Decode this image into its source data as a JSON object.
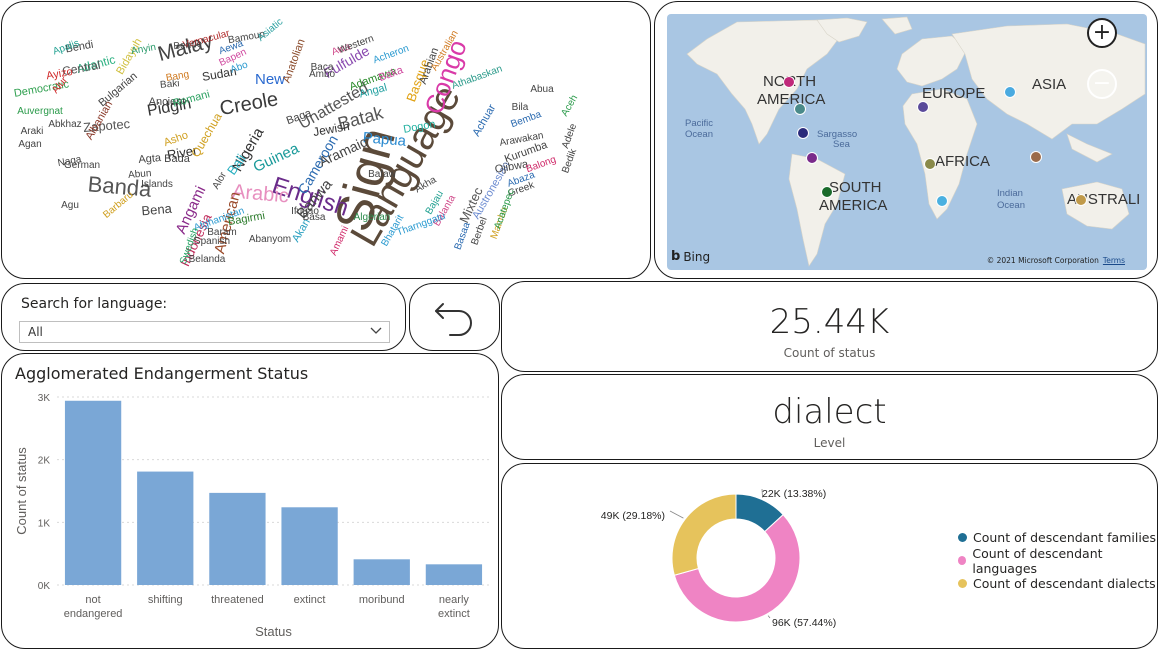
{
  "wordcloud": {
    "words": [
      {
        "text": "Sign",
        "color": "#5b4a3a"
      },
      {
        "text": "Language",
        "color": "#5b4a3a"
      },
      {
        "text": "English",
        "color": "#6a2b8a"
      },
      {
        "text": "Arabic",
        "color": "#e78fbf"
      },
      {
        "text": "Creole",
        "color": "#3a3a3a"
      },
      {
        "text": "Malay",
        "color": "#444444"
      },
      {
        "text": "Banda",
        "color": "#555555"
      },
      {
        "text": "Congo",
        "color": "#d93aa8"
      },
      {
        "text": "Batak",
        "color": "#555555"
      },
      {
        "text": "Guinea",
        "color": "#1a9a9a"
      },
      {
        "text": "Papua",
        "color": "#2a8ad0"
      },
      {
        "text": "Pidgin",
        "color": "#333333"
      },
      {
        "text": "Unattested",
        "color": "#555555"
      },
      {
        "text": "Nigeria",
        "color": "#333333"
      },
      {
        "text": "Cameroon",
        "color": "#2a6ab0"
      },
      {
        "text": "Aramaic",
        "color": "#444444"
      },
      {
        "text": "Basque",
        "color": "#e0a010"
      },
      {
        "text": "Atlantic",
        "color": "#2ab080"
      },
      {
        "text": "Banwa",
        "color": "#444444"
      },
      {
        "text": "Mixtec",
        "color": "#555555"
      },
      {
        "text": "Fulfulde",
        "color": "#8a4ab0"
      },
      {
        "text": "New",
        "color": "#2a6ad0"
      },
      {
        "text": "Bali",
        "color": "#2ab0c0"
      },
      {
        "text": "Angami",
        "color": "#8a2a8a"
      },
      {
        "text": "American",
        "color": "#9a4a2a"
      },
      {
        "text": "Indonesia",
        "color": "#c02a5a"
      },
      {
        "text": "Austronesian",
        "color": "#6a8ad0"
      },
      {
        "text": "Jewish",
        "color": "#333333"
      },
      {
        "text": "Zapotec",
        "color": "#555555"
      },
      {
        "text": "River",
        "color": "#333333"
      },
      {
        "text": "Bena",
        "color": "#444444"
      },
      {
        "text": "Central",
        "color": "#555555"
      },
      {
        "text": "Democratic",
        "color": "#30a050"
      },
      {
        "text": "Ancient",
        "color": "#444444"
      },
      {
        "text": "Romani",
        "color": "#2aa060"
      },
      {
        "text": "Quechua",
        "color": "#d0a020"
      },
      {
        "text": "Albanian",
        "color": "#8a3a2a"
      },
      {
        "text": "Bulgarian",
        "color": "#444444"
      },
      {
        "text": "Sudan",
        "color": "#333333"
      },
      {
        "text": "Anatolian",
        "color": "#8a4a2a"
      },
      {
        "text": "Athabaskan",
        "color": "#2a9a8a"
      },
      {
        "text": "Dogon",
        "color": "#20b0a0"
      },
      {
        "text": "Ojibwa",
        "color": "#444444"
      },
      {
        "text": "Kurumba",
        "color": "#444444"
      },
      {
        "text": "Arawakan",
        "color": "#444444"
      },
      {
        "text": "Vernacular",
        "color": "#b02a2a"
      },
      {
        "text": "Bendi",
        "color": "#444444"
      },
      {
        "text": "Benue",
        "color": "#444444"
      },
      {
        "text": "Bidayuh",
        "color": "#d0c040"
      },
      {
        "text": "Adamawa",
        "color": "#2a8a2a"
      },
      {
        "text": "Bamoun",
        "color": "#444444"
      },
      {
        "text": "Afghanistan",
        "color": "#2a9ad0"
      },
      {
        "text": "Swedish",
        "color": "#20a060"
      },
      {
        "text": "Belanda",
        "color": "#444444"
      },
      {
        "text": "Spanish",
        "color": "#444444"
      },
      {
        "text": "Bagirmi",
        "color": "#2a7a2a"
      },
      {
        "text": "Ifugao",
        "color": "#444444"
      },
      {
        "text": "Algerian",
        "color": "#2a8a4a"
      },
      {
        "text": "Akan",
        "color": "#2aa0c0"
      },
      {
        "text": "Abanyom",
        "color": "#444444"
      },
      {
        "text": "Baram",
        "color": "#444444"
      },
      {
        "text": "Bajau",
        "color": "#20a090"
      },
      {
        "text": "Greek",
        "color": "#444444"
      },
      {
        "text": "Akha",
        "color": "#444444"
      },
      {
        "text": "Abaza",
        "color": "#2a6ab0"
      },
      {
        "text": "Balong",
        "color": "#d02a6a"
      },
      {
        "text": "Bemba",
        "color": "#2a6ab0"
      },
      {
        "text": "Abua",
        "color": "#444444"
      },
      {
        "text": "Bila",
        "color": "#444444"
      },
      {
        "text": "Baka",
        "color": "#d04aa0"
      },
      {
        "text": "Baga",
        "color": "#444444"
      },
      {
        "text": "Awa",
        "color": "#d04a8a"
      },
      {
        "text": "Ambo",
        "color": "#444444"
      },
      {
        "text": "Baca",
        "color": "#444444"
      },
      {
        "text": "Angal",
        "color": "#20a0a0"
      },
      {
        "text": "Agta",
        "color": "#444444"
      },
      {
        "text": "Abun",
        "color": "#444444"
      },
      {
        "text": "Asho",
        "color": "#d0a020"
      },
      {
        "text": "Bada",
        "color": "#444444"
      },
      {
        "text": "German",
        "color": "#444444"
      },
      {
        "text": "Naga",
        "color": "#444444"
      },
      {
        "text": "Agu",
        "color": "#444444"
      },
      {
        "text": "Alor",
        "color": "#444444"
      },
      {
        "text": "Barbaru",
        "color": "#d0a020"
      },
      {
        "text": "Islands",
        "color": "#444444"
      },
      {
        "text": "Ayizo",
        "color": "#d02a2a"
      },
      {
        "text": "Auvergnat",
        "color": "#2a9a4a"
      },
      {
        "text": "Araki",
        "color": "#444444"
      },
      {
        "text": "Agan",
        "color": "#444444"
      },
      {
        "text": "Abkhaz",
        "color": "#444444"
      },
      {
        "text": "Anyin",
        "color": "#2a9a6a"
      },
      {
        "text": "Bang",
        "color": "#d07a20"
      },
      {
        "text": "Baki",
        "color": "#444444"
      },
      {
        "text": "Abo",
        "color": "#2a9ad0"
      },
      {
        "text": "Bapen",
        "color": "#d04aa0"
      },
      {
        "text": "Aewa",
        "color": "#2a6ab0"
      },
      {
        "text": "Asiatic",
        "color": "#2aa0a0"
      },
      {
        "text": "Western",
        "color": "#444444"
      },
      {
        "text": "Acheron",
        "color": "#2a9ad0"
      },
      {
        "text": "Arabian",
        "color": "#444444"
      },
      {
        "text": "Australian",
        "color": "#d07a20"
      },
      {
        "text": "Apalis",
        "color": "#20a090"
      },
      {
        "text": "Alur",
        "color": "#d02a2a"
      },
      {
        "text": "Adele",
        "color": "#444444"
      },
      {
        "text": "Bedik",
        "color": "#444444"
      },
      {
        "text": "Aceh",
        "color": "#2a9a4a"
      },
      {
        "text": "Achuar",
        "color": "#2a6ab0"
      },
      {
        "text": "Balanta",
        "color": "#d04a8a"
      },
      {
        "text": "Mambo",
        "color": "#d0a020"
      },
      {
        "text": "Basaa",
        "color": "#2a6ab0"
      },
      {
        "text": "Berbel",
        "color": "#444444"
      },
      {
        "text": "Acatepec",
        "color": "#2a9a4a"
      },
      {
        "text": "Bhatarit",
        "color": "#2a9ad0"
      },
      {
        "text": "Tharnggatu",
        "color": "#2a9ad0"
      },
      {
        "text": "Basa",
        "color": "#444444"
      },
      {
        "text": "Bafaw",
        "color": "#444444"
      },
      {
        "text": "Amami",
        "color": "#d02a6a"
      }
    ]
  },
  "map": {
    "labels": [
      {
        "text": "NORTH",
        "size": "large"
      },
      {
        "text": "AMERICA",
        "size": "large"
      },
      {
        "text": "EUROPE",
        "size": "large"
      },
      {
        "text": "ASIA",
        "size": "large"
      },
      {
        "text": "AFRICA",
        "size": "large"
      },
      {
        "text": "SOUTH",
        "size": "large"
      },
      {
        "text": "AMERICA",
        "size": "large"
      },
      {
        "text": "AUSTRALI",
        "size": "large"
      },
      {
        "text": "Pacific",
        "size": "small"
      },
      {
        "text": "Ocean",
        "size": "small"
      },
      {
        "text": "Sargasso",
        "size": "small"
      },
      {
        "text": "Sea",
        "size": "small"
      },
      {
        "text": "Indian",
        "size": "small"
      },
      {
        "text": "Ocean",
        "size": "small"
      }
    ],
    "markers": [
      {
        "color": "#c0287a"
      },
      {
        "color": "#4a8a8a"
      },
      {
        "color": "#2a2a7a"
      },
      {
        "color": "#7a2a8a"
      },
      {
        "color": "#5a4a9a"
      },
      {
        "color": "#4aaae0"
      },
      {
        "color": "#8a8a4a"
      },
      {
        "color": "#9a6a4a"
      },
      {
        "color": "#1a6a2a"
      },
      {
        "color": "#4ab0e0"
      },
      {
        "color": "#c09a4a"
      }
    ],
    "zoom_in": "+",
    "zoom_out": "−",
    "bing": "Bing",
    "copyright": "© 2021 Microsoft Corporation",
    "terms": "Terms",
    "land_color": "#f2f0ea",
    "water_color": "#a9c6e3"
  },
  "search": {
    "label": "Search for language:",
    "selected": "All",
    "chevron": "⌄"
  },
  "back_button": {
    "icon": "back-arrow-icon"
  },
  "kpi_count": {
    "value": "25.44K",
    "label": "Count of status"
  },
  "kpi_level": {
    "value": "dialect",
    "label": "Level"
  },
  "bar_chart": {
    "title": "Agglomerated Endangerment Status"
  },
  "donut_chart": {
    "legend": [
      {
        "label": "Count of descendant families",
        "color": "#1f6f94"
      },
      {
        "label": "Count of descendant languages",
        "color": "#ef84c4"
      },
      {
        "label": "Count of descendant dialects",
        "color": "#e6c35c"
      }
    ]
  },
  "chart_data": [
    {
      "type": "bar",
      "title": "Agglomerated Endangerment Status",
      "xlabel": "Status",
      "ylabel": "Count of status",
      "categories": [
        "not endangered",
        "shifting",
        "threatened",
        "extinct",
        "moribund",
        "nearly extinct"
      ],
      "category_lines": [
        [
          "not",
          "endangered"
        ],
        [
          "shifting"
        ],
        [
          "threatened"
        ],
        [
          "extinct"
        ],
        [
          "moribund"
        ],
        [
          "nearly",
          "extinct"
        ]
      ],
      "values": [
        2940,
        1810,
        1470,
        1240,
        410,
        330
      ],
      "ylim": [
        0,
        3000
      ],
      "yticks": [
        0,
        1000,
        2000,
        3000
      ],
      "ytick_labels": [
        "0K",
        "1K",
        "2K",
        "3K"
      ],
      "color": "#7aa7d6",
      "grid": true
    },
    {
      "type": "pie",
      "donut": true,
      "categories": [
        "Count of descendant families",
        "Count of descendant languages",
        "Count of descendant dialects"
      ],
      "values": [
        22000,
        96000,
        49000
      ],
      "percentages": [
        13.38,
        57.44,
        29.18
      ],
      "data_labels": [
        "22K (13.38%)",
        "96K (57.44%)",
        "49K (29.18%)"
      ],
      "colors": [
        "#1f6f94",
        "#ef84c4",
        "#e6c35c"
      ],
      "legend_position": "right"
    }
  ]
}
